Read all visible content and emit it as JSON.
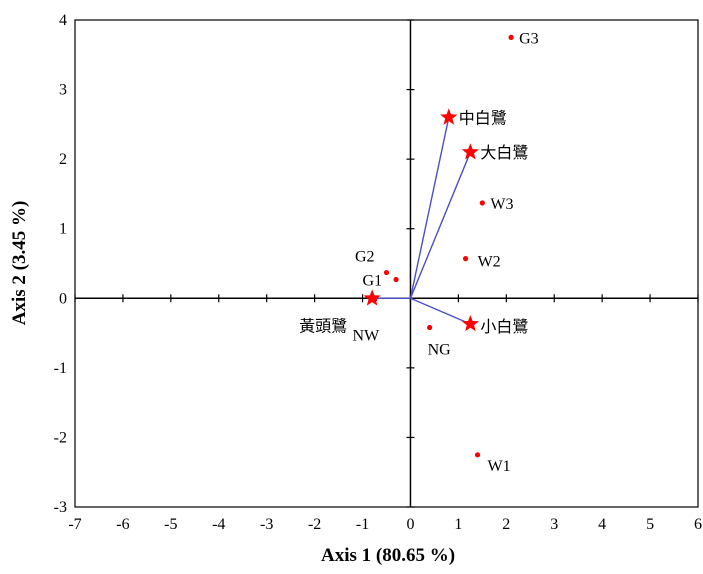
{
  "chart_data": {
    "type": "scatter",
    "xlabel": "Axis 1 (80.65 %)",
    "ylabel": "Axis 2 (3.45 %)",
    "xlim": [
      -7,
      6
    ],
    "ylim": [
      -3,
      4
    ],
    "xticks": [
      "-7",
      "-6",
      "-5",
      "-4",
      "-3",
      "-2",
      "-1",
      "0",
      "1",
      "2",
      "3",
      "4",
      "5",
      "6"
    ],
    "yticks": [
      "-3",
      "-2",
      "-1",
      "0",
      "1",
      "2",
      "3",
      "4"
    ],
    "grid": false,
    "points": [
      {
        "label": "G3",
        "x": 2.1,
        "y": 3.75
      },
      {
        "label": "W3",
        "x": 1.5,
        "y": 1.37
      },
      {
        "label": "W2",
        "x": 1.15,
        "y": 0.57
      },
      {
        "label": "G2",
        "x": -0.5,
        "y": 0.37
      },
      {
        "label": "G1",
        "x": -0.3,
        "y": 0.27
      },
      {
        "label": "NG",
        "x": 0.4,
        "y": -0.42
      },
      {
        "label": "NW",
        "x": -0.75,
        "y": -0.02
      },
      {
        "label": "W1",
        "x": 1.4,
        "y": -2.25
      }
    ],
    "vectors": [
      {
        "label": "中白鷺",
        "x": 0.8,
        "y": 2.6
      },
      {
        "label": "大白鷺",
        "x": 1.25,
        "y": 2.1
      },
      {
        "label": "小白鷺",
        "x": 1.25,
        "y": -0.37
      },
      {
        "label": "黃頭鷺",
        "x": -0.8,
        "y": 0.0
      }
    ],
    "colors": {
      "points": "#ff0000",
      "stars": "#ff0000",
      "vectors": "#4a50c8",
      "axes": "#000000"
    }
  }
}
